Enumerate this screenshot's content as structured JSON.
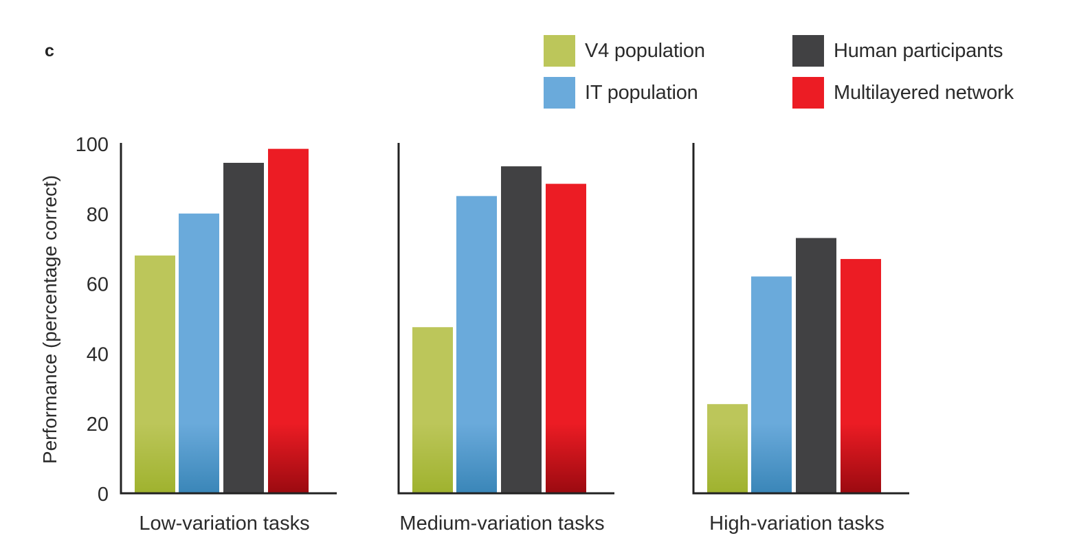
{
  "panel_label": "c",
  "legend": [
    {
      "label": "V4 population",
      "color": "#bcc65a",
      "color_dark": "#9fb22e"
    },
    {
      "label": "IT population",
      "color": "#6aaadb",
      "color_dark": "#3a86b8"
    },
    {
      "label": "Human participants",
      "color": "#414143",
      "color_dark": "#414143"
    },
    {
      "label": "Multilayered network",
      "color": "#ec1c24",
      "color_dark": "#9b0a10"
    }
  ],
  "chart_data": {
    "type": "bar",
    "title": "",
    "xlabel": "",
    "ylabel": "Performance (percentage correct)",
    "ylim": [
      0,
      100
    ],
    "yticks": [
      0,
      20,
      40,
      60,
      80,
      100
    ],
    "grid": false,
    "legend_position": "top-right",
    "categories": [
      "Low-variation tasks",
      "Medium-variation tasks",
      "High-variation tasks"
    ],
    "series": [
      {
        "name": "V4 population",
        "values": [
          68,
          47.5,
          25.5
        ]
      },
      {
        "name": "IT population",
        "values": [
          80,
          85,
          62
        ]
      },
      {
        "name": "Human participants",
        "values": [
          94.5,
          93.5,
          73
        ]
      },
      {
        "name": "Multilayered network",
        "values": [
          98.5,
          88.5,
          67
        ]
      }
    ]
  }
}
